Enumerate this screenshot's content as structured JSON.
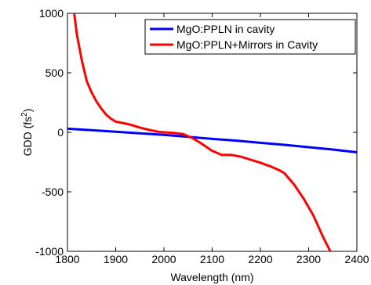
{
  "chart_data": {
    "type": "line",
    "title": "",
    "xlabel": "Wavelength (nm)",
    "ylabel_prefix": "GDD (fs",
    "ylabel_sup": "2",
    "ylabel_suffix": ")",
    "xlim": [
      1800,
      2400
    ],
    "ylim": [
      -1000,
      1000
    ],
    "xticks": [
      1800,
      1900,
      2000,
      2100,
      2200,
      2300,
      2400
    ],
    "yticks": [
      -1000,
      -500,
      0,
      500,
      1000
    ],
    "grid": false,
    "legend_position": "top-right",
    "series": [
      {
        "name": "MgO:PPLN in cavity",
        "color": "#0000ff",
        "x": [
          1800,
          1850,
          1900,
          1950,
          2000,
          2050,
          2100,
          2150,
          2200,
          2250,
          2300,
          2350,
          2400
        ],
        "y": [
          30,
          18,
          5,
          -8,
          -22,
          -38,
          -55,
          -70,
          -88,
          -105,
          -125,
          -145,
          -168
        ]
      },
      {
        "name": "MgO:PPLN+Mirrors in Cavity",
        "color": "#ff0000",
        "x": [
          1814,
          1820,
          1830,
          1840,
          1850,
          1860,
          1870,
          1880,
          1890,
          1900,
          1915,
          1930,
          1950,
          1970,
          1990,
          2000,
          2020,
          2040,
          2060,
          2080,
          2100,
          2120,
          2140,
          2160,
          2180,
          2200,
          2220,
          2240,
          2250,
          2270,
          2290,
          2310,
          2330,
          2345
        ],
        "y": [
          1000,
          810,
          600,
          430,
          335,
          260,
          200,
          150,
          115,
          90,
          78,
          65,
          40,
          20,
          3,
          0,
          -5,
          -15,
          -50,
          -100,
          -155,
          -190,
          -190,
          -205,
          -230,
          -255,
          -285,
          -320,
          -345,
          -440,
          -560,
          -700,
          -880,
          -1000
        ]
      }
    ]
  }
}
